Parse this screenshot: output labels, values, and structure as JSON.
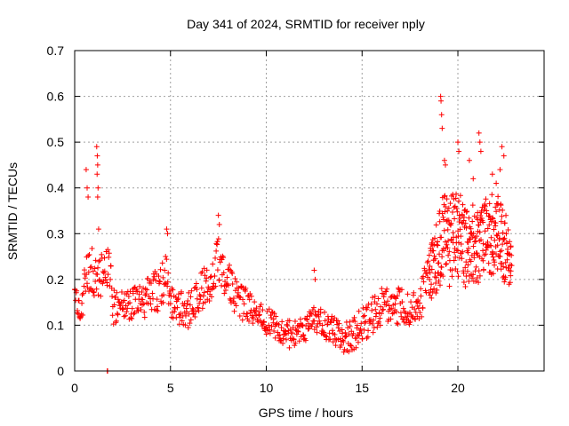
{
  "chart_data": {
    "type": "scatter",
    "title": "Day 341 of 2024, SRMTID for receiver nply",
    "xlabel": "GPS time / hours",
    "ylabel": "SRMTID / TECUs",
    "xlim": [
      0,
      24.5
    ],
    "ylim": [
      0,
      0.7
    ],
    "xticks": [
      "0",
      "5",
      "10",
      "15",
      "20"
    ],
    "xtick_values": [
      0,
      5,
      10,
      15,
      20
    ],
    "yticks": [
      "0",
      "0.1",
      "0.2",
      "0.3",
      "0.4",
      "0.5",
      "0.6",
      "0.7"
    ],
    "ytick_values": [
      0,
      0.1,
      0.2,
      0.3,
      0.4,
      0.5,
      0.6,
      0.7
    ],
    "grid": true,
    "marker": "plus",
    "color": "#ff0000",
    "series": [
      {
        "name": "nply",
        "envelope": {
          "hours": [
            0,
            0.3,
            0.6,
            1.0,
            1.2,
            1.5,
            1.8,
            2.0,
            2.5,
            3.0,
            3.5,
            4.0,
            4.5,
            4.8,
            5.0,
            5.5,
            6.0,
            6.5,
            7.0,
            7.5,
            8.0,
            8.5,
            9.0,
            9.5,
            10.0,
            10.5,
            11.0,
            11.5,
            12.0,
            12.5,
            13.0,
            13.5,
            14.0,
            14.5,
            15.0,
            15.5,
            16.0,
            16.5,
            17.0,
            17.5,
            18.0,
            18.5,
            19.0,
            19.3,
            19.6,
            20.0,
            20.5,
            21.0,
            21.5,
            22.0,
            22.5,
            22.8
          ],
          "center": [
            0.16,
            0.13,
            0.2,
            0.22,
            0.2,
            0.22,
            0.23,
            0.14,
            0.15,
            0.14,
            0.15,
            0.17,
            0.18,
            0.2,
            0.15,
            0.14,
            0.13,
            0.17,
            0.2,
            0.24,
            0.2,
            0.15,
            0.14,
            0.13,
            0.11,
            0.1,
            0.08,
            0.08,
            0.09,
            0.12,
            0.1,
            0.09,
            0.07,
            0.08,
            0.1,
            0.12,
            0.14,
            0.15,
            0.14,
            0.13,
            0.15,
            0.2,
            0.26,
            0.3,
            0.28,
            0.3,
            0.27,
            0.28,
            0.3,
            0.3,
            0.27,
            0.22
          ],
          "spread": [
            0.03,
            0.04,
            0.05,
            0.06,
            0.06,
            0.04,
            0.05,
            0.04,
            0.03,
            0.04,
            0.04,
            0.04,
            0.05,
            0.06,
            0.04,
            0.04,
            0.04,
            0.04,
            0.05,
            0.05,
            0.05,
            0.04,
            0.04,
            0.03,
            0.03,
            0.03,
            0.03,
            0.03,
            0.03,
            0.03,
            0.03,
            0.03,
            0.03,
            0.04,
            0.04,
            0.04,
            0.04,
            0.04,
            0.04,
            0.04,
            0.04,
            0.06,
            0.08,
            0.1,
            0.1,
            0.1,
            0.09,
            0.09,
            0.09,
            0.09,
            0.08,
            0.05
          ]
        },
        "spikes": [
          {
            "x": 0.6,
            "y": 0.44
          },
          {
            "x": 0.65,
            "y": 0.4
          },
          {
            "x": 0.7,
            "y": 0.38
          },
          {
            "x": 1.15,
            "y": 0.49
          },
          {
            "x": 1.18,
            "y": 0.47
          },
          {
            "x": 1.2,
            "y": 0.45
          },
          {
            "x": 1.17,
            "y": 0.43
          },
          {
            "x": 1.22,
            "y": 0.4
          },
          {
            "x": 1.2,
            "y": 0.38
          },
          {
            "x": 1.25,
            "y": 0.31
          },
          {
            "x": 1.7,
            "y": 0.0
          },
          {
            "x": 1.72,
            "y": 0.0
          },
          {
            "x": 4.8,
            "y": 0.31
          },
          {
            "x": 4.85,
            "y": 0.3
          },
          {
            "x": 7.5,
            "y": 0.34
          },
          {
            "x": 7.55,
            "y": 0.32
          },
          {
            "x": 12.5,
            "y": 0.22
          },
          {
            "x": 12.55,
            "y": 0.2
          },
          {
            "x": 19.1,
            "y": 0.6
          },
          {
            "x": 19.12,
            "y": 0.59
          },
          {
            "x": 19.15,
            "y": 0.56
          },
          {
            "x": 19.18,
            "y": 0.53
          },
          {
            "x": 19.3,
            "y": 0.46
          },
          {
            "x": 19.35,
            "y": 0.45
          },
          {
            "x": 20.0,
            "y": 0.5
          },
          {
            "x": 20.05,
            "y": 0.48
          },
          {
            "x": 20.6,
            "y": 0.46
          },
          {
            "x": 20.8,
            "y": 0.42
          },
          {
            "x": 21.1,
            "y": 0.52
          },
          {
            "x": 21.15,
            "y": 0.5
          },
          {
            "x": 21.2,
            "y": 0.48
          },
          {
            "x": 22.3,
            "y": 0.49
          },
          {
            "x": 22.4,
            "y": 0.47
          },
          {
            "x": 22.2,
            "y": 0.44
          },
          {
            "x": 21.8,
            "y": 0.43
          },
          {
            "x": 22.0,
            "y": 0.41
          }
        ]
      }
    ]
  }
}
